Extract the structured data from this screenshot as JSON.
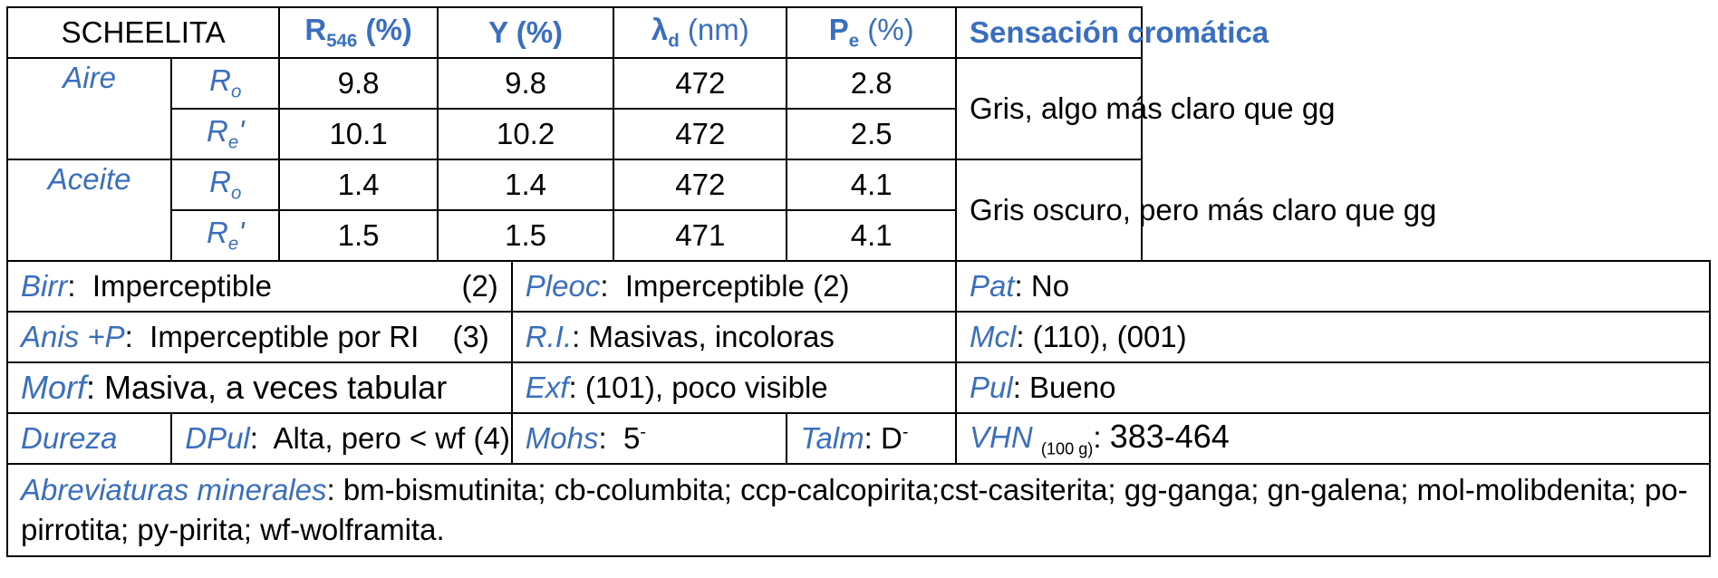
{
  "header": {
    "mineral": "SCHEELITA",
    "r546_main": "R",
    "r546_sub": "546",
    "r546_unit": " (%)",
    "y": "Y (%)",
    "lambda_main": "λ",
    "lambda_sub": "d",
    "lambda_unit": " (nm)",
    "pe_main": "P",
    "pe_sub": "e",
    "pe_unit": " (%)",
    "sensacion": "Sensación cromática"
  },
  "media": [
    {
      "name": "Aire",
      "rows": [
        {
          "label_main": "R",
          "label_sub": "o",
          "label_prime": "",
          "r546": "9.8",
          "y": "9.8",
          "lambda": "472",
          "pe": "2.8"
        },
        {
          "label_main": "R",
          "label_sub": "e",
          "label_prime": "'",
          "r546": "10.1",
          "y": "10.2",
          "lambda": "472",
          "pe": "2.5"
        }
      ],
      "sensacion": "Gris, algo más claro que gg"
    },
    {
      "name": "Aceite",
      "rows": [
        {
          "label_main": "R",
          "label_sub": "o",
          "label_prime": "",
          "r546": "1.4",
          "y": "1.4",
          "lambda": "472",
          "pe": "4.1"
        },
        {
          "label_main": "R",
          "label_sub": "e",
          "label_prime": "'",
          "r546": "1.5",
          "y": "1.5",
          "lambda": "471",
          "pe": "4.1"
        }
      ],
      "sensacion": "Gris oscuro, pero más claro que gg"
    }
  ],
  "props": {
    "birr_label": "Birr",
    "birr_value": "Imperceptible",
    "birr_ref": "(2)",
    "pleoc_label": "Pleoc",
    "pleoc_value": "Imperceptible  (2)",
    "pat_label": "Pat",
    "pat_value": "No",
    "anis_label": "Anis +P",
    "anis_value": "Imperceptible por RI",
    "anis_ref": "(3)",
    "ri_label": "R.I.",
    "ri_value": "Masivas, incoloras",
    "mcl_label": "Mcl",
    "mcl_value": "(110), (001)",
    "morf_label": "Morf",
    "morf_value": "Masiva, a veces tabular",
    "exf_label": "Exf",
    "exf_value": "(101), poco visible",
    "pul_label": "Pul",
    "pul_value": "Bueno",
    "dureza_label": "Dureza",
    "dpul_label": "DPul",
    "dpul_value": "Alta, pero < wf  (4)",
    "mohs_label": "Mohs",
    "mohs_value": "5",
    "mohs_sup": "-",
    "talm_label": "Talm",
    "talm_value": "D",
    "talm_sup": "-",
    "vhn_label": "VHN",
    "vhn_sub": "(100 g)",
    "vhn_value": "383-464"
  },
  "footer": {
    "abrev_label": "Abreviaturas minerales",
    "abrev_text": "bm-bismutinita; cb-columbita; ccp-calcopirita;cst-casiterita; gg-ganga; gn-galena; mol-molibdenita; po-pirrotita; py-pirita; wf-wolframita."
  },
  "colors": {
    "accent_blue": "#3a6fc0",
    "border": "#000000"
  }
}
